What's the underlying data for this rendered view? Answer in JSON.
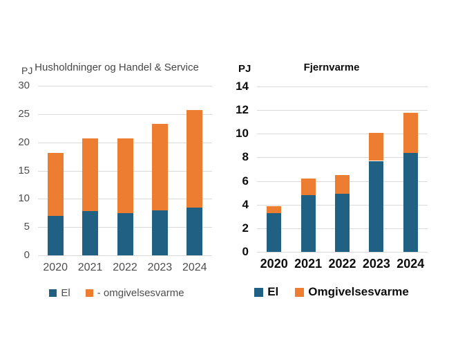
{
  "page": {
    "background": "#ffffff"
  },
  "colors": {
    "el": "#1f6083",
    "omgivelsesvarme": "#ed7d31",
    "gridline": "#d9d9d9",
    "left_text": "#4d4d4d",
    "right_text": "#0d0d0d"
  },
  "chart_data": [
    {
      "type": "bar",
      "stacked": true,
      "title": "Husholdninger og Handel & Service",
      "unit_label": "PJ",
      "categories": [
        "2020",
        "2021",
        "2022",
        "2023",
        "2024"
      ],
      "series": [
        {
          "name": "El",
          "color_key": "el",
          "values": [
            7.0,
            7.8,
            7.5,
            8.0,
            8.5
          ]
        },
        {
          "name": "- omgivelsesvarme",
          "color_key": "omgivelsesvarme",
          "values": [
            11.1,
            12.9,
            13.2,
            15.3,
            17.2
          ]
        }
      ],
      "totals": [
        18.1,
        20.7,
        20.7,
        23.3,
        25.7
      ],
      "ylim": [
        0,
        30
      ],
      "yticks": [
        0,
        5,
        10,
        15,
        20,
        25,
        30
      ],
      "legend": [
        "El",
        "- omgivelsesvarme"
      ],
      "legend_position": "bottom",
      "grid": true
    },
    {
      "type": "bar",
      "stacked": true,
      "title": "Fjernvarme",
      "unit_label": "PJ",
      "categories": [
        "2020",
        "2021",
        "2022",
        "2023",
        "2024"
      ],
      "series": [
        {
          "name": "El",
          "color_key": "el",
          "values": [
            3.3,
            4.8,
            4.9,
            7.7,
            8.4
          ]
        },
        {
          "name": "Omgivelsesvarme",
          "color_key": "omgivelsesvarme",
          "values": [
            0.55,
            1.4,
            1.6,
            2.35,
            3.35
          ]
        }
      ],
      "totals": [
        3.85,
        6.2,
        6.5,
        10.05,
        11.75
      ],
      "ylim": [
        0,
        14
      ],
      "yticks": [
        0,
        2,
        4,
        6,
        8,
        10,
        12,
        14
      ],
      "legend": [
        "El",
        "Omgivelsesvarme"
      ],
      "legend_position": "bottom",
      "grid": true
    }
  ]
}
